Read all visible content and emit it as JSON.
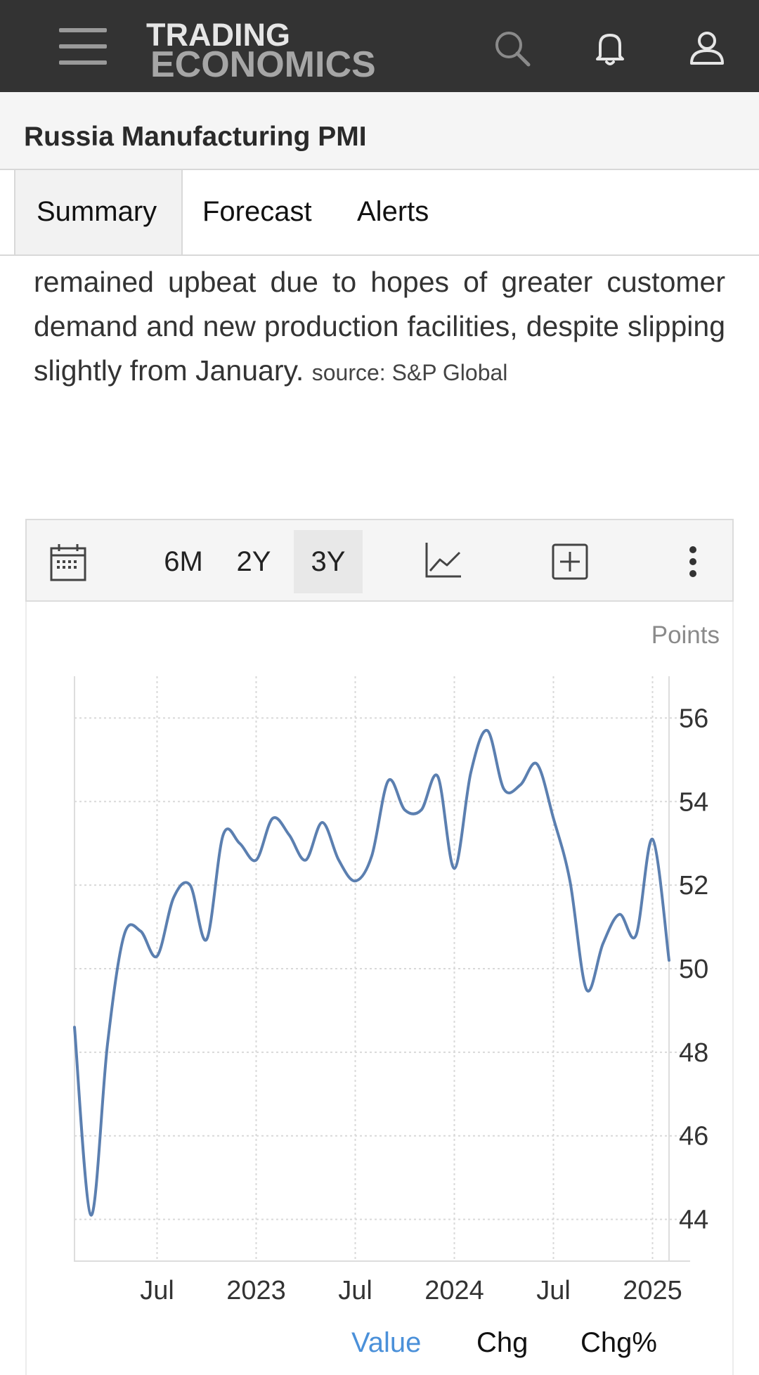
{
  "header": {
    "logo_line1": "TRADING",
    "logo_line2": "ECONOMICS"
  },
  "page": {
    "title": "Russia Manufacturing PMI"
  },
  "tabs": [
    {
      "label": "Summary"
    },
    {
      "label": "Forecast"
    },
    {
      "label": "Alerts"
    }
  ],
  "description": {
    "text": "remained upbeat due to hopes of greater customer demand and new production facilities, despite slipping slightly from January.",
    "source": "source: S&P Global"
  },
  "chart_toolbar": {
    "ranges": [
      "6M",
      "2Y",
      "3Y"
    ],
    "active_range": "3Y"
  },
  "chart_data": {
    "type": "line",
    "units": "Points",
    "ylim": [
      43,
      57
    ],
    "yticks": [
      44,
      46,
      48,
      50,
      52,
      54,
      56
    ],
    "xticks": [
      "Jul",
      "2023",
      "Jul",
      "2024",
      "Jul",
      "2025"
    ],
    "grid": true,
    "series": [
      {
        "color": "#5b7fb0",
        "x": [
          "2022-02",
          "2022-03",
          "2022-04",
          "2022-05",
          "2022-06",
          "2022-07",
          "2022-08",
          "2022-09",
          "2022-10",
          "2022-11",
          "2022-12",
          "2023-01",
          "2023-02",
          "2023-03",
          "2023-04",
          "2023-05",
          "2023-06",
          "2023-07",
          "2023-08",
          "2023-09",
          "2023-10",
          "2023-11",
          "2023-12",
          "2024-01",
          "2024-02",
          "2024-03",
          "2024-04",
          "2024-05",
          "2024-06",
          "2024-07",
          "2024-08",
          "2024-09",
          "2024-10",
          "2024-11",
          "2024-12",
          "2025-01",
          "2025-02"
        ],
        "values": [
          48.6,
          44.1,
          48.2,
          50.8,
          50.9,
          50.3,
          51.7,
          52.0,
          50.7,
          53.2,
          53.0,
          52.6,
          53.6,
          53.2,
          52.6,
          53.5,
          52.6,
          52.1,
          52.7,
          54.5,
          53.8,
          53.8,
          54.6,
          52.4,
          54.7,
          55.7,
          54.3,
          54.4,
          54.9,
          53.6,
          52.1,
          49.5,
          50.6,
          51.3,
          50.8,
          53.1,
          50.2
        ]
      }
    ]
  },
  "legend": {
    "value_label": "Value",
    "chg_label": "Chg",
    "chgpct_label": "Chg%",
    "active_color": "#4a90d9"
  }
}
